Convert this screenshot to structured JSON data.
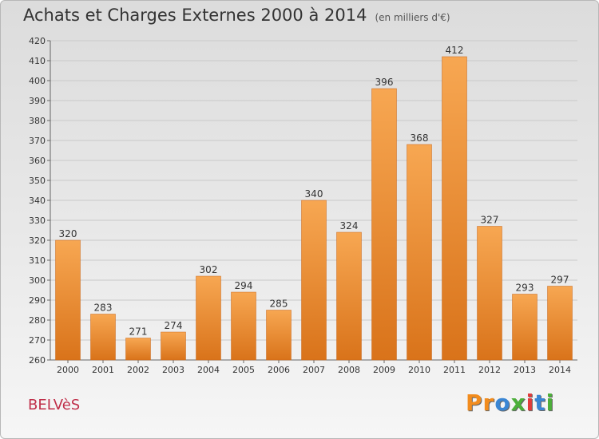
{
  "header": {
    "title": "Achats et Charges Externes 2000 à 2014",
    "subtitle": "(en milliers d'€)"
  },
  "footer": {
    "commune": "BELVèS",
    "logo_text": "Proxiti"
  },
  "colors": {
    "bar_top": "#f7a752",
    "bar_bottom": "#d9731a",
    "logo": [
      "#f28c1e",
      "#f28c1e",
      "#3a86d4",
      "#4caf3a",
      "#e23b3b",
      "#3a86d4",
      "#4caf3a"
    ]
  },
  "chart_data": {
    "type": "bar",
    "title": "Achats et Charges Externes 2000 à 2014",
    "subtitle": "(en milliers d'€)",
    "categories": [
      "2000",
      "2001",
      "2002",
      "2003",
      "2004",
      "2005",
      "2006",
      "2007",
      "2008",
      "2009",
      "2010",
      "2011",
      "2012",
      "2013",
      "2014"
    ],
    "values": [
      320,
      283,
      271,
      274,
      302,
      294,
      285,
      340,
      324,
      396,
      368,
      412,
      327,
      293,
      297
    ],
    "ylim": [
      260,
      420
    ],
    "yticks": [
      260,
      270,
      280,
      290,
      300,
      310,
      320,
      330,
      340,
      350,
      360,
      370,
      380,
      390,
      400,
      410,
      420
    ],
    "grid": true,
    "xlabel": "",
    "ylabel": ""
  }
}
